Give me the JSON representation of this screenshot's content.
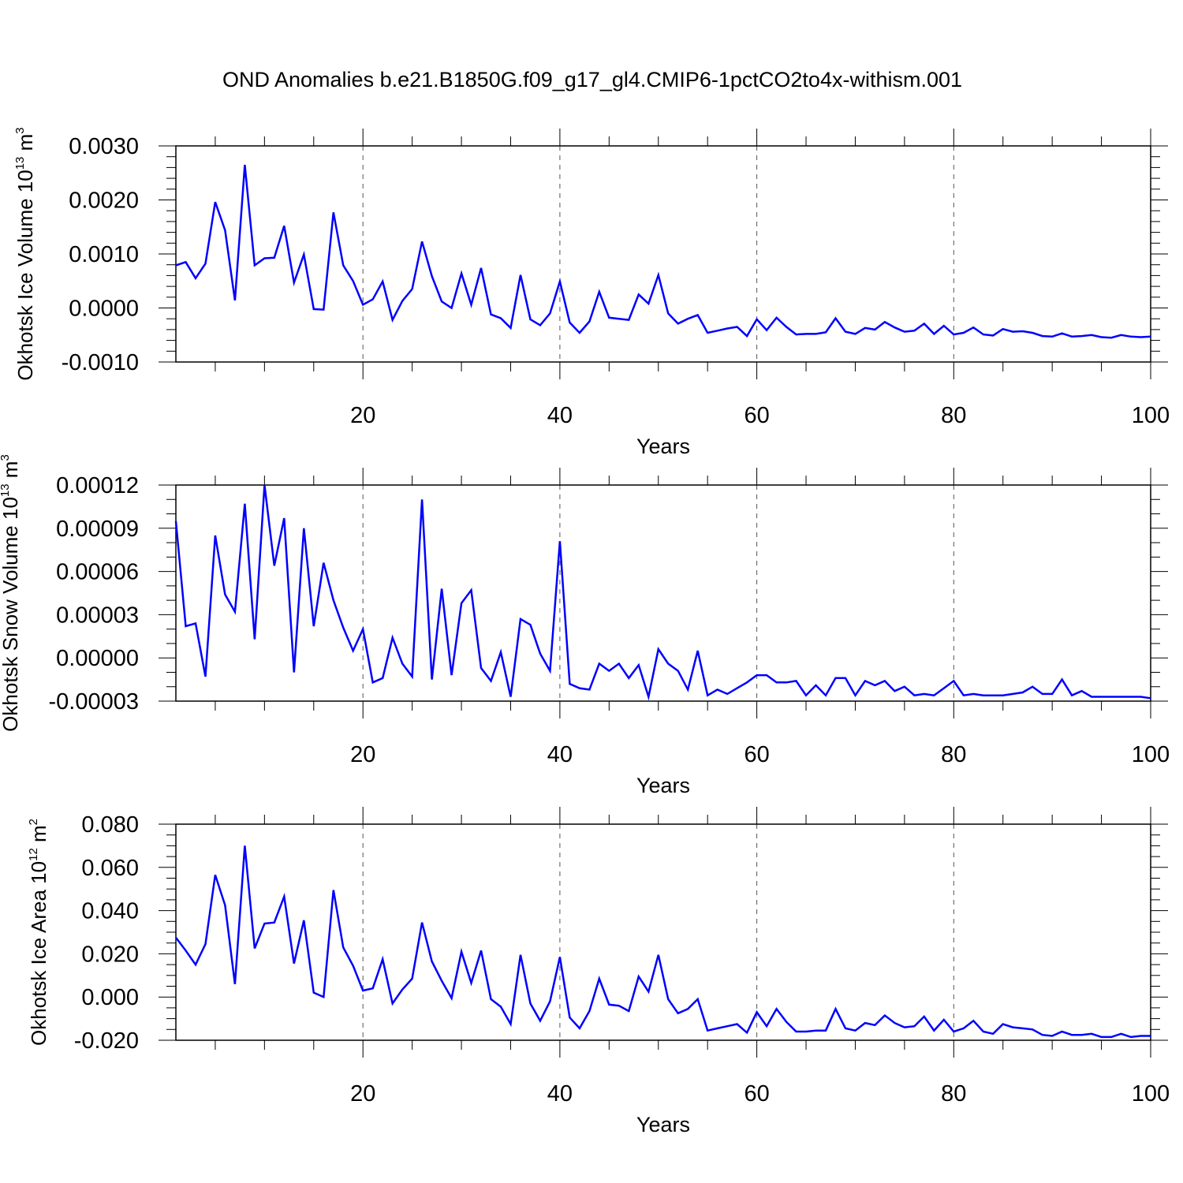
{
  "title": "OND Anomalies b.e21.B1850G.f09_g17_gl4.CMIP6-1pctCO2to4x-withism.001",
  "colors": {
    "line": "#0000ff",
    "axis": "#000000",
    "grid": "#555555"
  },
  "chart_data": [
    {
      "type": "line",
      "ylabel": {
        "text": "Okhotsk Ice Volume 10",
        "exp": "13",
        "unit": " m",
        "unit_exp": "3"
      },
      "xlabel": "Years",
      "xlim": [
        1,
        100
      ],
      "ylim": [
        -0.001,
        0.003
      ],
      "xticks": [
        20,
        40,
        60,
        80,
        100
      ],
      "xtick_labels": [
        "20",
        "40",
        "60",
        "80",
        "100"
      ],
      "yticks": [
        -0.001,
        0.0,
        0.001,
        0.002,
        0.003
      ],
      "ytick_labels": [
        "-0.0010",
        "0.0000",
        "0.0010",
        "0.0020",
        "0.0030"
      ],
      "minor_yticks": 4,
      "grid": "vertical dashed at major x ticks",
      "series": [
        {
          "x_start": 1,
          "values": [
            0.00079,
            0.00085,
            0.00055,
            0.00082,
            0.00196,
            0.00144,
            0.00014,
            0.00265,
            0.00079,
            0.00092,
            0.00093,
            0.00152,
            0.00047,
            0.00099,
            -2e-05,
            -3e-05,
            0.00177,
            0.00079,
            0.0005,
            6e-05,
            0.00016,
            0.00049,
            -0.00022,
            0.00013,
            0.00035,
            0.00123,
            0.00059,
            0.00012,
            0.0,
            0.00064,
            6e-05,
            0.00074,
            -0.00012,
            -0.00019,
            -0.00037,
            0.00061,
            -0.00021,
            -0.00032,
            -0.0001,
            0.00049,
            -0.00027,
            -0.00046,
            -0.00025,
            0.0003,
            -0.00018,
            -0.0002,
            -0.00022,
            0.00025,
            8e-05,
            0.00061,
            -0.0001,
            -0.00029,
            -0.0002,
            -0.00013,
            -0.00046,
            -0.00042,
            -0.00038,
            -0.00035,
            -0.00052,
            -0.00021,
            -0.00041,
            -0.00018,
            -0.00035,
            -0.00049,
            -0.00048,
            -0.00048,
            -0.00045,
            -0.00019,
            -0.00044,
            -0.00048,
            -0.00037,
            -0.0004,
            -0.00026,
            -0.00036,
            -0.00044,
            -0.00042,
            -0.00029,
            -0.00048,
            -0.00033,
            -0.00049,
            -0.00046,
            -0.00036,
            -0.00049,
            -0.00051,
            -0.00039,
            -0.00044,
            -0.00043,
            -0.00046,
            -0.00052,
            -0.00053,
            -0.00047,
            -0.00053,
            -0.00052,
            -0.0005,
            -0.00054,
            -0.00055,
            -0.0005,
            -0.00053,
            -0.00054,
            -0.00053
          ]
        }
      ]
    },
    {
      "type": "line",
      "ylabel": {
        "text": "Okhotsk Snow Volume 10",
        "exp": "13",
        "unit": " m",
        "unit_exp": "3"
      },
      "xlabel": "Years",
      "xlim": [
        1,
        100
      ],
      "ylim": [
        -3e-05,
        0.00012
      ],
      "xticks": [
        20,
        40,
        60,
        80,
        100
      ],
      "xtick_labels": [
        "20",
        "40",
        "60",
        "80",
        "100"
      ],
      "yticks": [
        -3e-05,
        0.0,
        3e-05,
        6e-05,
        9e-05,
        0.00012
      ],
      "ytick_labels": [
        "-0.00003",
        "0.00000",
        "0.00003",
        "0.00006",
        "0.00009",
        "0.00012"
      ],
      "minor_yticks": 2,
      "grid": "vertical dashed at major x ticks",
      "series": [
        {
          "x_start": 1,
          "values": [
            9.5e-05,
            2.2e-05,
            2.4e-05,
            -1.3e-05,
            8.5e-05,
            4.4e-05,
            3.2e-05,
            0.000107,
            1.3e-05,
            0.00012,
            6.4e-05,
            9.7e-05,
            -1e-05,
            9e-05,
            2.2e-05,
            6.6e-05,
            4e-05,
            2.1e-05,
            5e-06,
            2e-05,
            -1.7e-05,
            -1.4e-05,
            1.4e-05,
            -4e-06,
            -1.3e-05,
            0.00011,
            -1.5e-05,
            4.8e-05,
            -1.2e-05,
            3.8e-05,
            4.7e-05,
            -7e-06,
            -1.6e-05,
            4e-06,
            -2.7e-05,
            2.7e-05,
            2.3e-05,
            3e-06,
            -9e-06,
            8.1e-05,
            -1.8e-05,
            -2.1e-05,
            -2.2e-05,
            -4e-06,
            -9e-06,
            -4e-06,
            -1.4e-05,
            -5e-06,
            -2.7e-05,
            6e-06,
            -4e-06,
            -9e-06,
            -2.2e-05,
            5e-06,
            -2.6e-05,
            -2.2e-05,
            -2.5e-05,
            -2.1e-05,
            -1.7e-05,
            -1.2e-05,
            -1.2e-05,
            -1.7e-05,
            -1.7e-05,
            -1.6e-05,
            -2.6e-05,
            -1.9e-05,
            -2.6e-05,
            -1.4e-05,
            -1.4e-05,
            -2.6e-05,
            -1.6e-05,
            -1.9e-05,
            -1.6e-05,
            -2.3e-05,
            -2e-05,
            -2.6e-05,
            -2.5e-05,
            -2.6e-05,
            -2.1e-05,
            -1.6e-05,
            -2.6e-05,
            -2.5e-05,
            -2.6e-05,
            -2.6e-05,
            -2.6e-05,
            -2.5e-05,
            -2.4e-05,
            -2e-05,
            -2.5e-05,
            -2.5e-05,
            -1.5e-05,
            -2.6e-05,
            -2.3e-05,
            -2.7e-05,
            -2.7e-05,
            -2.7e-05,
            -2.7e-05,
            -2.7e-05,
            -2.7e-05,
            -2.8e-05
          ]
        }
      ]
    },
    {
      "type": "line",
      "ylabel": {
        "text": "Okhotsk Ice Area 10",
        "exp": "12",
        "unit": " m",
        "unit_exp": "2"
      },
      "xlabel": "Years",
      "xlim": [
        1,
        100
      ],
      "ylim": [
        -0.02,
        0.08
      ],
      "xticks": [
        20,
        40,
        60,
        80,
        100
      ],
      "xtick_labels": [
        "20",
        "40",
        "60",
        "80",
        "100"
      ],
      "yticks": [
        -0.02,
        0.0,
        0.02,
        0.04,
        0.06,
        0.08
      ],
      "ytick_labels": [
        "-0.020",
        "0.000",
        "0.020",
        "0.040",
        "0.060",
        "0.080"
      ],
      "minor_yticks": 3,
      "grid": "vertical dashed at major x ticks",
      "series": [
        {
          "x_start": 1,
          "values": [
            0.0275,
            0.0215,
            0.015,
            0.0245,
            0.0565,
            0.0425,
            0.006,
            0.07,
            0.0225,
            0.034,
            0.0345,
            0.0465,
            0.0155,
            0.0355,
            0.002,
            0.0,
            0.0495,
            0.023,
            0.0145,
            0.003,
            0.004,
            0.0175,
            -0.003,
            0.0035,
            0.0085,
            0.0345,
            0.0165,
            0.0075,
            -0.0005,
            0.021,
            0.0065,
            0.0215,
            -0.001,
            -0.0045,
            -0.0125,
            0.0195,
            -0.003,
            -0.011,
            -0.002,
            0.0185,
            -0.0095,
            -0.0145,
            -0.0065,
            0.0085,
            -0.0035,
            -0.004,
            -0.0065,
            0.0095,
            0.0025,
            0.0195,
            -0.001,
            -0.0075,
            -0.0055,
            -0.001,
            -0.0155,
            -0.0145,
            -0.0135,
            -0.0125,
            -0.0165,
            -0.007,
            -0.0135,
            -0.0055,
            -0.0115,
            -0.016,
            -0.016,
            -0.0155,
            -0.0155,
            -0.0055,
            -0.0145,
            -0.0155,
            -0.012,
            -0.013,
            -0.0085,
            -0.012,
            -0.014,
            -0.0135,
            -0.009,
            -0.0155,
            -0.0105,
            -0.016,
            -0.0145,
            -0.011,
            -0.016,
            -0.017,
            -0.0125,
            -0.014,
            -0.0145,
            -0.015,
            -0.0175,
            -0.018,
            -0.016,
            -0.0175,
            -0.0175,
            -0.017,
            -0.0185,
            -0.0185,
            -0.017,
            -0.0185,
            -0.018,
            -0.018
          ]
        }
      ]
    }
  ]
}
